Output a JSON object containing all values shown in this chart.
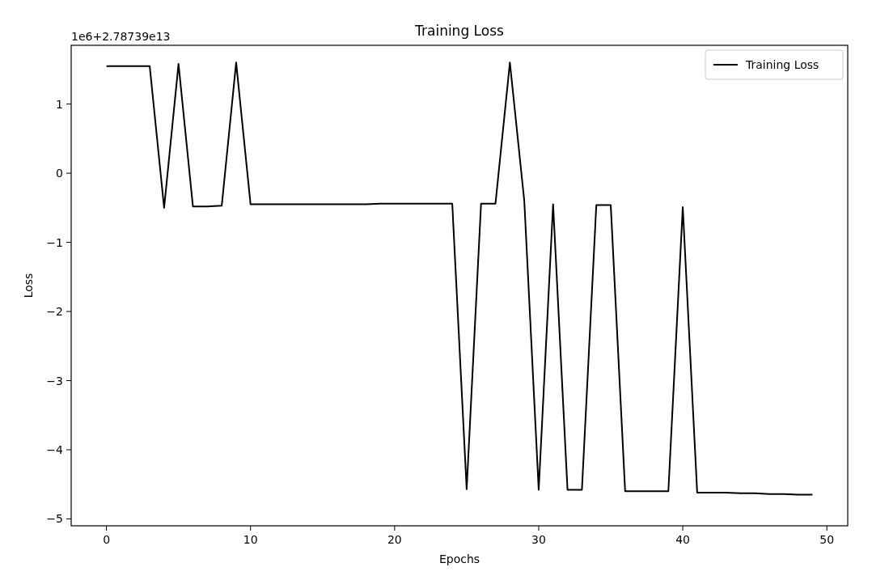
{
  "chart_data": {
    "type": "line",
    "title": "Training Loss",
    "xlabel": "Epochs",
    "ylabel": "Loss",
    "annotations": [
      "1e6+2.78739e13"
    ],
    "x": [
      0,
      1,
      2,
      3,
      4,
      5,
      6,
      7,
      8,
      9,
      10,
      11,
      12,
      13,
      14,
      15,
      16,
      17,
      18,
      19,
      20,
      21,
      22,
      23,
      24,
      25,
      26,
      27,
      28,
      29,
      30,
      31,
      32,
      33,
      34,
      35,
      36,
      37,
      38,
      39,
      40,
      41,
      42,
      43,
      44,
      45,
      46,
      47,
      48,
      49
    ],
    "series": [
      {
        "name": "Training Loss",
        "color": "#000000",
        "values": [
          1.55,
          1.55,
          1.55,
          1.55,
          -0.5,
          1.58,
          -0.48,
          -0.48,
          -0.47,
          1.6,
          -0.45,
          -0.45,
          -0.45,
          -0.45,
          -0.45,
          -0.45,
          -0.45,
          -0.45,
          -0.45,
          -0.44,
          -0.44,
          -0.44,
          -0.44,
          -0.44,
          -0.44,
          -4.57,
          -0.44,
          -0.44,
          1.6,
          -0.4,
          -4.58,
          -0.45,
          -4.58,
          -4.58,
          -0.46,
          -0.46,
          -4.6,
          -4.6,
          -4.6,
          -4.6,
          -0.49,
          -4.62,
          -4.62,
          -4.62,
          -4.63,
          -4.63,
          -4.64,
          -4.64,
          -4.65,
          -4.65
        ]
      }
    ],
    "xlim": [
      -2.45,
      51.45
    ],
    "ylim": [
      -5.1,
      1.85
    ],
    "xticks": [
      0,
      10,
      20,
      30,
      40,
      50
    ],
    "yticks": [
      -5,
      -4,
      -3,
      -2,
      -1,
      0,
      1
    ],
    "legend": "top right",
    "grid": false
  }
}
